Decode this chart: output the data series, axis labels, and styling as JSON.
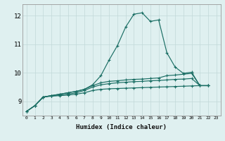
{
  "xlabel": "Humidex (Indice chaleur)",
  "xlim": [
    -0.5,
    23.5
  ],
  "ylim": [
    8.5,
    12.4
  ],
  "yticks": [
    9,
    10,
    11,
    12
  ],
  "xticks": [
    0,
    1,
    2,
    3,
    4,
    5,
    6,
    7,
    8,
    9,
    10,
    11,
    12,
    13,
    14,
    15,
    16,
    17,
    18,
    19,
    20,
    21,
    22,
    23
  ],
  "background_color": "#dff0f0",
  "grid_color": "#c2d8d8",
  "line_color": "#1a6e64",
  "lines": [
    [
      8.65,
      8.85,
      9.15,
      9.2,
      9.25,
      9.3,
      9.35,
      9.42,
      9.58,
      9.9,
      10.45,
      10.95,
      11.6,
      12.05,
      12.1,
      11.8,
      11.85,
      10.7,
      10.2,
      9.98,
      10.02,
      9.55,
      9.55
    ],
    [
      8.65,
      8.85,
      9.15,
      9.2,
      9.25,
      9.3,
      9.35,
      9.42,
      9.55,
      9.65,
      9.7,
      9.72,
      9.75,
      9.77,
      9.78,
      9.8,
      9.82,
      9.9,
      9.92,
      9.95,
      9.98,
      9.55,
      9.55
    ],
    [
      8.65,
      8.85,
      9.15,
      9.2,
      9.22,
      9.25,
      9.3,
      9.38,
      9.5,
      9.58,
      9.62,
      9.65,
      9.67,
      9.69,
      9.7,
      9.72,
      9.73,
      9.75,
      9.77,
      9.78,
      9.8,
      9.55,
      9.55
    ],
    [
      8.65,
      8.85,
      9.15,
      9.18,
      9.2,
      9.22,
      9.25,
      9.3,
      9.38,
      9.42,
      9.44,
      9.45,
      9.46,
      9.47,
      9.48,
      9.49,
      9.5,
      9.51,
      9.52,
      9.53,
      9.54,
      9.55,
      9.55
    ]
  ]
}
